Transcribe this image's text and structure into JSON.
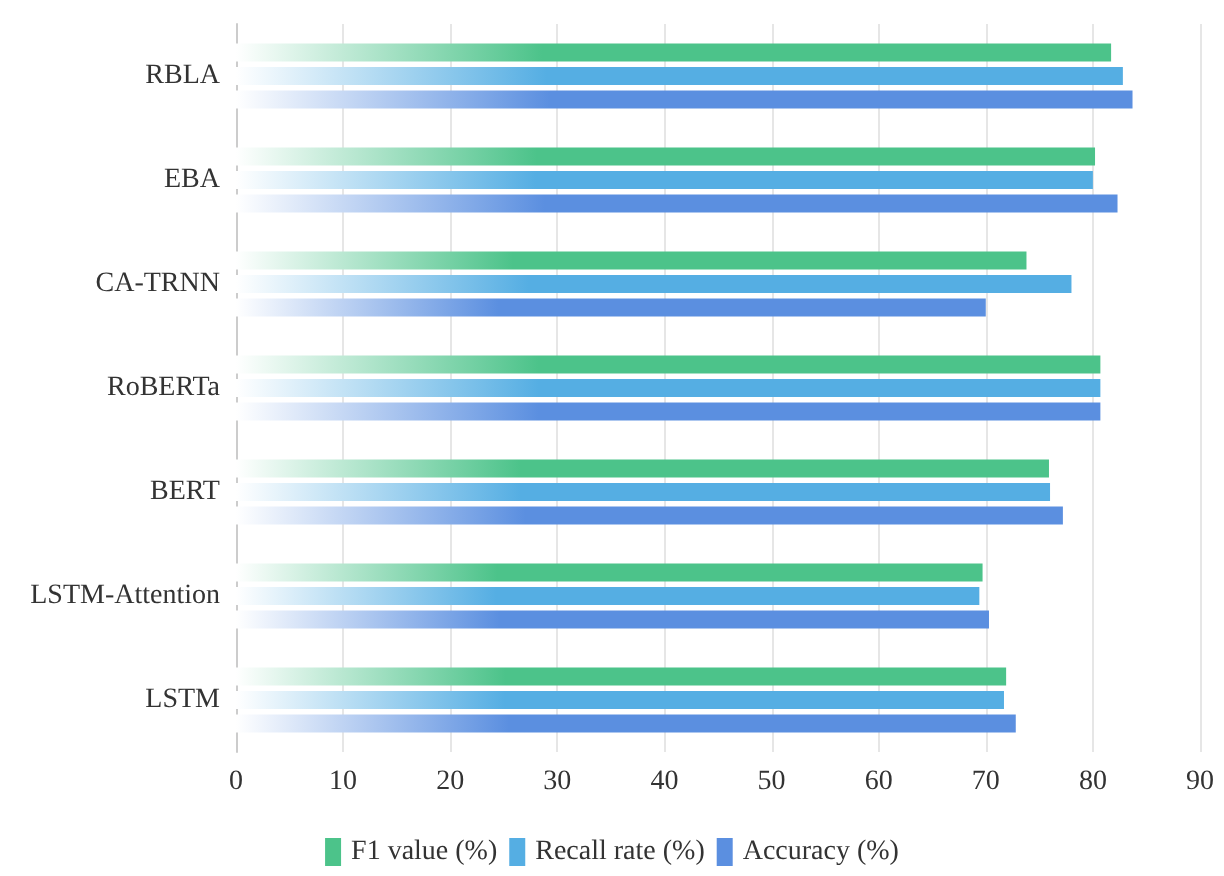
{
  "chart_data": {
    "type": "bar",
    "orientation": "horizontal",
    "categories": [
      "RBLA",
      "EBA",
      "CA-TRNN",
      "RoBERTa",
      "BERT",
      "LSTM-Attention",
      "LSTM"
    ],
    "series": [
      {
        "name": "F1 value (%)",
        "color": "#4cc38a",
        "values": [
          81.7,
          80.2,
          73.8,
          80.7,
          75.9,
          69.7,
          71.9
        ]
      },
      {
        "name": "Recall rate (%)",
        "color": "#55aee3",
        "values": [
          82.8,
          80.0,
          78.0,
          80.7,
          76.0,
          69.4,
          71.7
        ]
      },
      {
        "name": "Accuracy (%)",
        "color": "#5b8fe0",
        "values": [
          83.7,
          82.3,
          70.0,
          80.7,
          77.2,
          70.3,
          72.8
        ]
      }
    ],
    "xlim": [
      0,
      90
    ],
    "xticks": [
      0,
      10,
      20,
      30,
      40,
      50,
      60,
      70,
      80,
      90
    ],
    "grid": "x",
    "legend": "bottom"
  }
}
